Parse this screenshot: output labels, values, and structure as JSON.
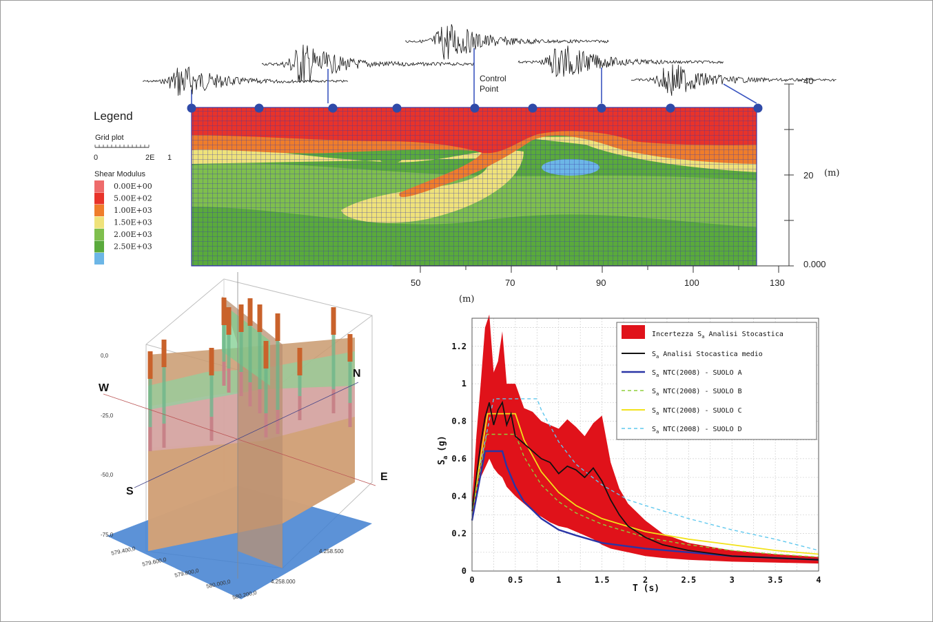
{
  "top_section": {
    "control_point_label_line1": "Control",
    "control_point_label_line2": "Point",
    "x_axis_unit": "(m)",
    "x_ticks": [
      "50",
      "70",
      "90",
      "100",
      "130"
    ],
    "y_axis_unit": "(m)",
    "y_ticks": [
      "40",
      "20",
      "0.000"
    ],
    "legend": {
      "title": "Legend",
      "grid_plot_label": "Grid plot",
      "grid_scale_labels": [
        "0",
        "2E",
        "1"
      ],
      "shear_modulus_label": "Shear Modulus",
      "entries": [
        {
          "label": "0.00E+00",
          "color": "#ee6b6b"
        },
        {
          "label": "5.00E+02",
          "color": "#e8332a"
        },
        {
          "label": "1.00E+03",
          "color": "#ef7d2b"
        },
        {
          "label": "1.50E+03",
          "color": "#efe27a"
        },
        {
          "label": "2.00E+03",
          "color": "#7fbf4d"
        },
        {
          "label": "2.50E+03",
          "color": "#5aaa3c"
        },
        {
          "label": "",
          "color": "#6cb6e6"
        }
      ]
    },
    "colors": {
      "grid": "#3a3aa8",
      "red": "#e8332a",
      "orange": "#ef7d2b",
      "yellow": "#efe27a",
      "green_light": "#7fbf4d",
      "green": "#5aaa3c",
      "blue": "#6cb6e6",
      "node": "#2f4aa8"
    }
  },
  "model_3d": {
    "compass": {
      "w": "W",
      "n": "N",
      "s": "S",
      "e": "E"
    },
    "depth_labels": [
      "0,0",
      "-25,0",
      "-50,0",
      "-75,0"
    ],
    "easting_labels": [
      "579.400,0",
      "579.600,0",
      "579.800,0",
      "580.000,0",
      "580.200,0"
    ],
    "northing_labels": [
      "4.258.500",
      "4.258.000"
    ]
  },
  "chart_data": {
    "type": "line",
    "xlabel": "T (s)",
    "ylabel": "S",
    "ylabel_sub": "a",
    "ylabel_unit": "(g)",
    "xlim": [
      0,
      4
    ],
    "ylim": [
      0,
      1.35
    ],
    "x_ticks": [
      "0",
      "0.5",
      "1",
      "1.5",
      "2",
      "2.5",
      "3",
      "3.5",
      "4"
    ],
    "y_ticks": [
      "0",
      "0.2",
      "0.4",
      "0.6",
      "0.8",
      "1",
      "1.2"
    ],
    "legend": [
      {
        "prefix": "Incertezza S",
        "sub": "a",
        "suffix": " Analisi Stocastica"
      },
      {
        "prefix": "S",
        "sub": "a",
        "suffix": " Analisi Stocastica medio"
      },
      {
        "prefix": "S",
        "sub": "a",
        "suffix": " NTC(2008) - SUOLO A"
      },
      {
        "prefix": "S",
        "sub": "a",
        "suffix": " NTC(2008) - SUOLO B"
      },
      {
        "prefix": "S",
        "sub": "a",
        "suffix": " NTC(2008) - SUOLO C"
      },
      {
        "prefix": "S",
        "sub": "a",
        "suffix": " NTC(2008) - SUOLO D"
      }
    ],
    "colors": [
      "#e0121a",
      "#111111",
      "#2a35a6",
      "#8fcf3a",
      "#f2e21a",
      "#5fc8ee"
    ],
    "band": {
      "x": [
        0,
        0.05,
        0.1,
        0.15,
        0.2,
        0.25,
        0.3,
        0.35,
        0.4,
        0.5,
        0.6,
        0.7,
        0.8,
        0.9,
        1.0,
        1.1,
        1.2,
        1.3,
        1.4,
        1.5,
        1.6,
        1.7,
        1.8,
        2.0,
        2.2,
        2.5,
        3.0,
        3.5,
        4.0
      ],
      "upper": [
        0.36,
        0.72,
        1.0,
        1.3,
        1.37,
        1.06,
        1.12,
        1.28,
        1.0,
        1.0,
        0.87,
        0.85,
        0.8,
        0.78,
        0.76,
        0.81,
        0.77,
        0.72,
        0.79,
        0.83,
        0.58,
        0.44,
        0.36,
        0.27,
        0.2,
        0.15,
        0.11,
        0.09,
        0.075
      ],
      "lower": [
        0.28,
        0.38,
        0.5,
        0.55,
        0.6,
        0.55,
        0.52,
        0.5,
        0.45,
        0.4,
        0.36,
        0.32,
        0.29,
        0.26,
        0.24,
        0.23,
        0.21,
        0.19,
        0.17,
        0.14,
        0.12,
        0.11,
        0.1,
        0.08,
        0.07,
        0.06,
        0.05,
        0.045,
        0.04
      ]
    },
    "series": [
      {
        "name": "Analisi Stocastica medio",
        "x": [
          0,
          0.05,
          0.1,
          0.15,
          0.2,
          0.25,
          0.3,
          0.35,
          0.4,
          0.45,
          0.5,
          0.6,
          0.7,
          0.8,
          0.9,
          1.0,
          1.1,
          1.2,
          1.3,
          1.4,
          1.5,
          1.6,
          1.7,
          1.8,
          2.0,
          2.2,
          2.5,
          3.0,
          3.5,
          4.0
        ],
        "y": [
          0.32,
          0.5,
          0.68,
          0.82,
          0.9,
          0.78,
          0.86,
          0.9,
          0.78,
          0.84,
          0.72,
          0.68,
          0.64,
          0.6,
          0.58,
          0.52,
          0.56,
          0.54,
          0.5,
          0.55,
          0.48,
          0.38,
          0.3,
          0.24,
          0.18,
          0.14,
          0.11,
          0.08,
          0.07,
          0.06
        ]
      },
      {
        "name": "NTC(2008) - SUOLO A",
        "x": [
          0,
          0.15,
          0.35,
          0.4,
          0.5,
          0.6,
          0.8,
          1.0,
          1.2,
          1.5,
          2.0,
          2.5,
          3.0,
          3.5,
          4.0
        ],
        "y": [
          0.27,
          0.64,
          0.64,
          0.56,
          0.45,
          0.37,
          0.28,
          0.22,
          0.19,
          0.15,
          0.12,
          0.1,
          0.08,
          0.07,
          0.06
        ]
      },
      {
        "name": "NTC(2008) - SUOLO B",
        "x": [
          0,
          0.17,
          0.5,
          0.6,
          0.8,
          1.0,
          1.2,
          1.5,
          2.0,
          2.5,
          3.0,
          3.5,
          4.0
        ],
        "y": [
          0.3,
          0.73,
          0.73,
          0.61,
          0.46,
          0.37,
          0.31,
          0.25,
          0.18,
          0.14,
          0.11,
          0.09,
          0.075
        ]
      },
      {
        "name": "NTC(2008) - SUOLO C",
        "x": [
          0,
          0.18,
          0.5,
          0.6,
          0.8,
          1.0,
          1.2,
          1.5,
          2.0,
          2.5,
          3.0,
          3.5,
          4.0
        ],
        "y": [
          0.32,
          0.84,
          0.84,
          0.7,
          0.53,
          0.42,
          0.35,
          0.28,
          0.21,
          0.17,
          0.14,
          0.11,
          0.09
        ]
      },
      {
        "name": "NTC(2008) - SUOLO D",
        "x": [
          0,
          0.25,
          0.75,
          0.8,
          1.0,
          1.2,
          1.5,
          1.8,
          2.0,
          2.5,
          3.0,
          3.5,
          4.0
        ],
        "y": [
          0.35,
          0.92,
          0.92,
          0.86,
          0.69,
          0.57,
          0.46,
          0.38,
          0.35,
          0.28,
          0.22,
          0.17,
          0.11
        ]
      }
    ]
  }
}
